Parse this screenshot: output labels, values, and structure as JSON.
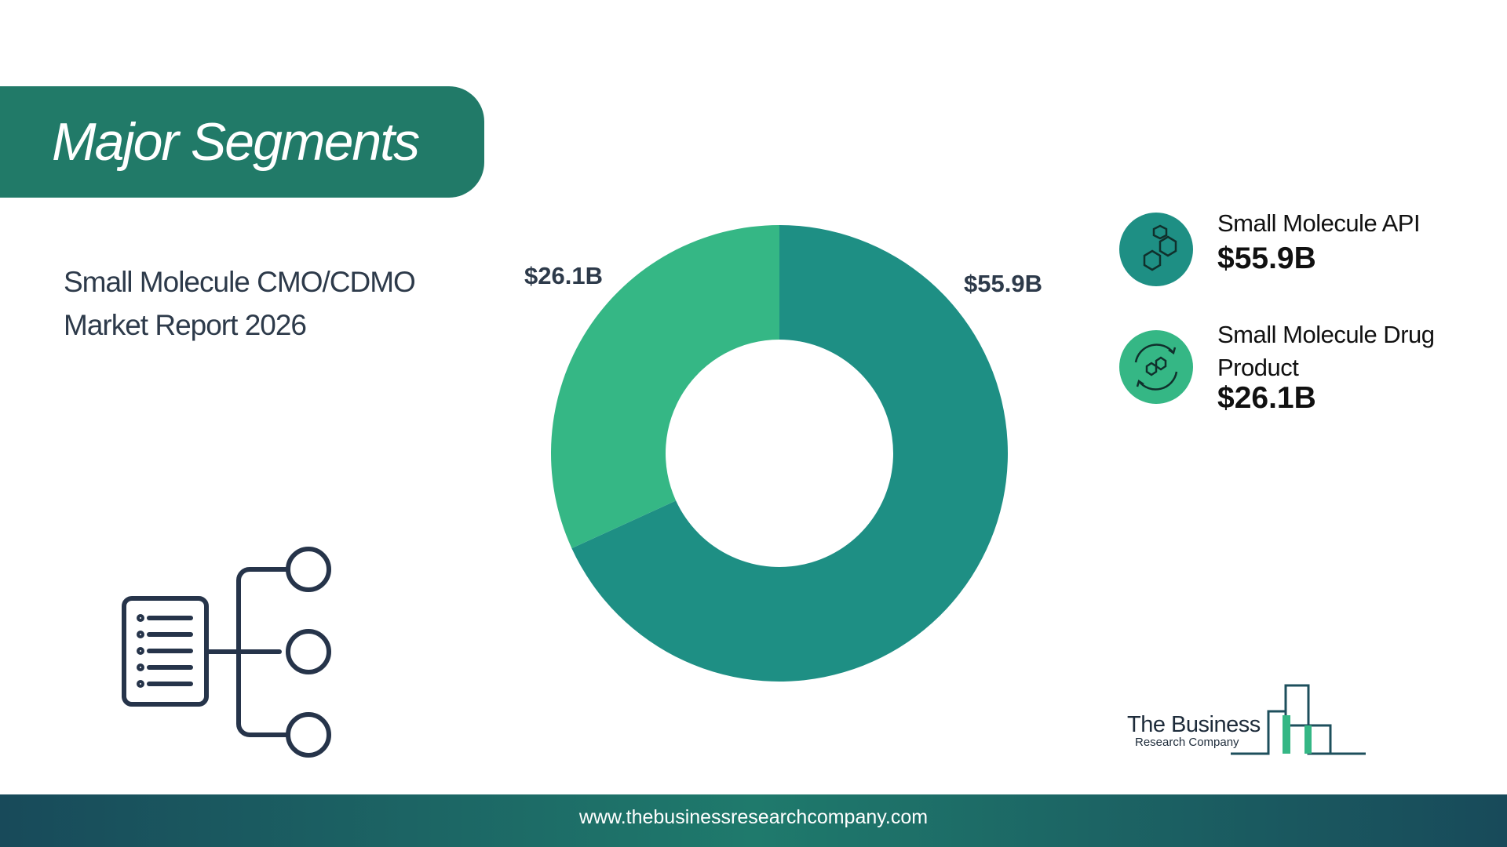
{
  "header": {
    "title": "Major Segments"
  },
  "subtitle": "Small Molecule CMO/CDMO Market Report 2026",
  "chart_data": {
    "type": "donut",
    "categories": [
      "Small Molecule API",
      "Small Molecule Drug Product"
    ],
    "values": [
      55.9,
      26.1
    ],
    "value_labels": [
      "$55.9B",
      "$26.1B"
    ],
    "colors": [
      "#1e8f84",
      "#35b785"
    ]
  },
  "logo": {
    "line1": "The Business",
    "line2": "Research Company"
  },
  "footer": {
    "url": "www.thebusinessresearchcompany.com"
  }
}
